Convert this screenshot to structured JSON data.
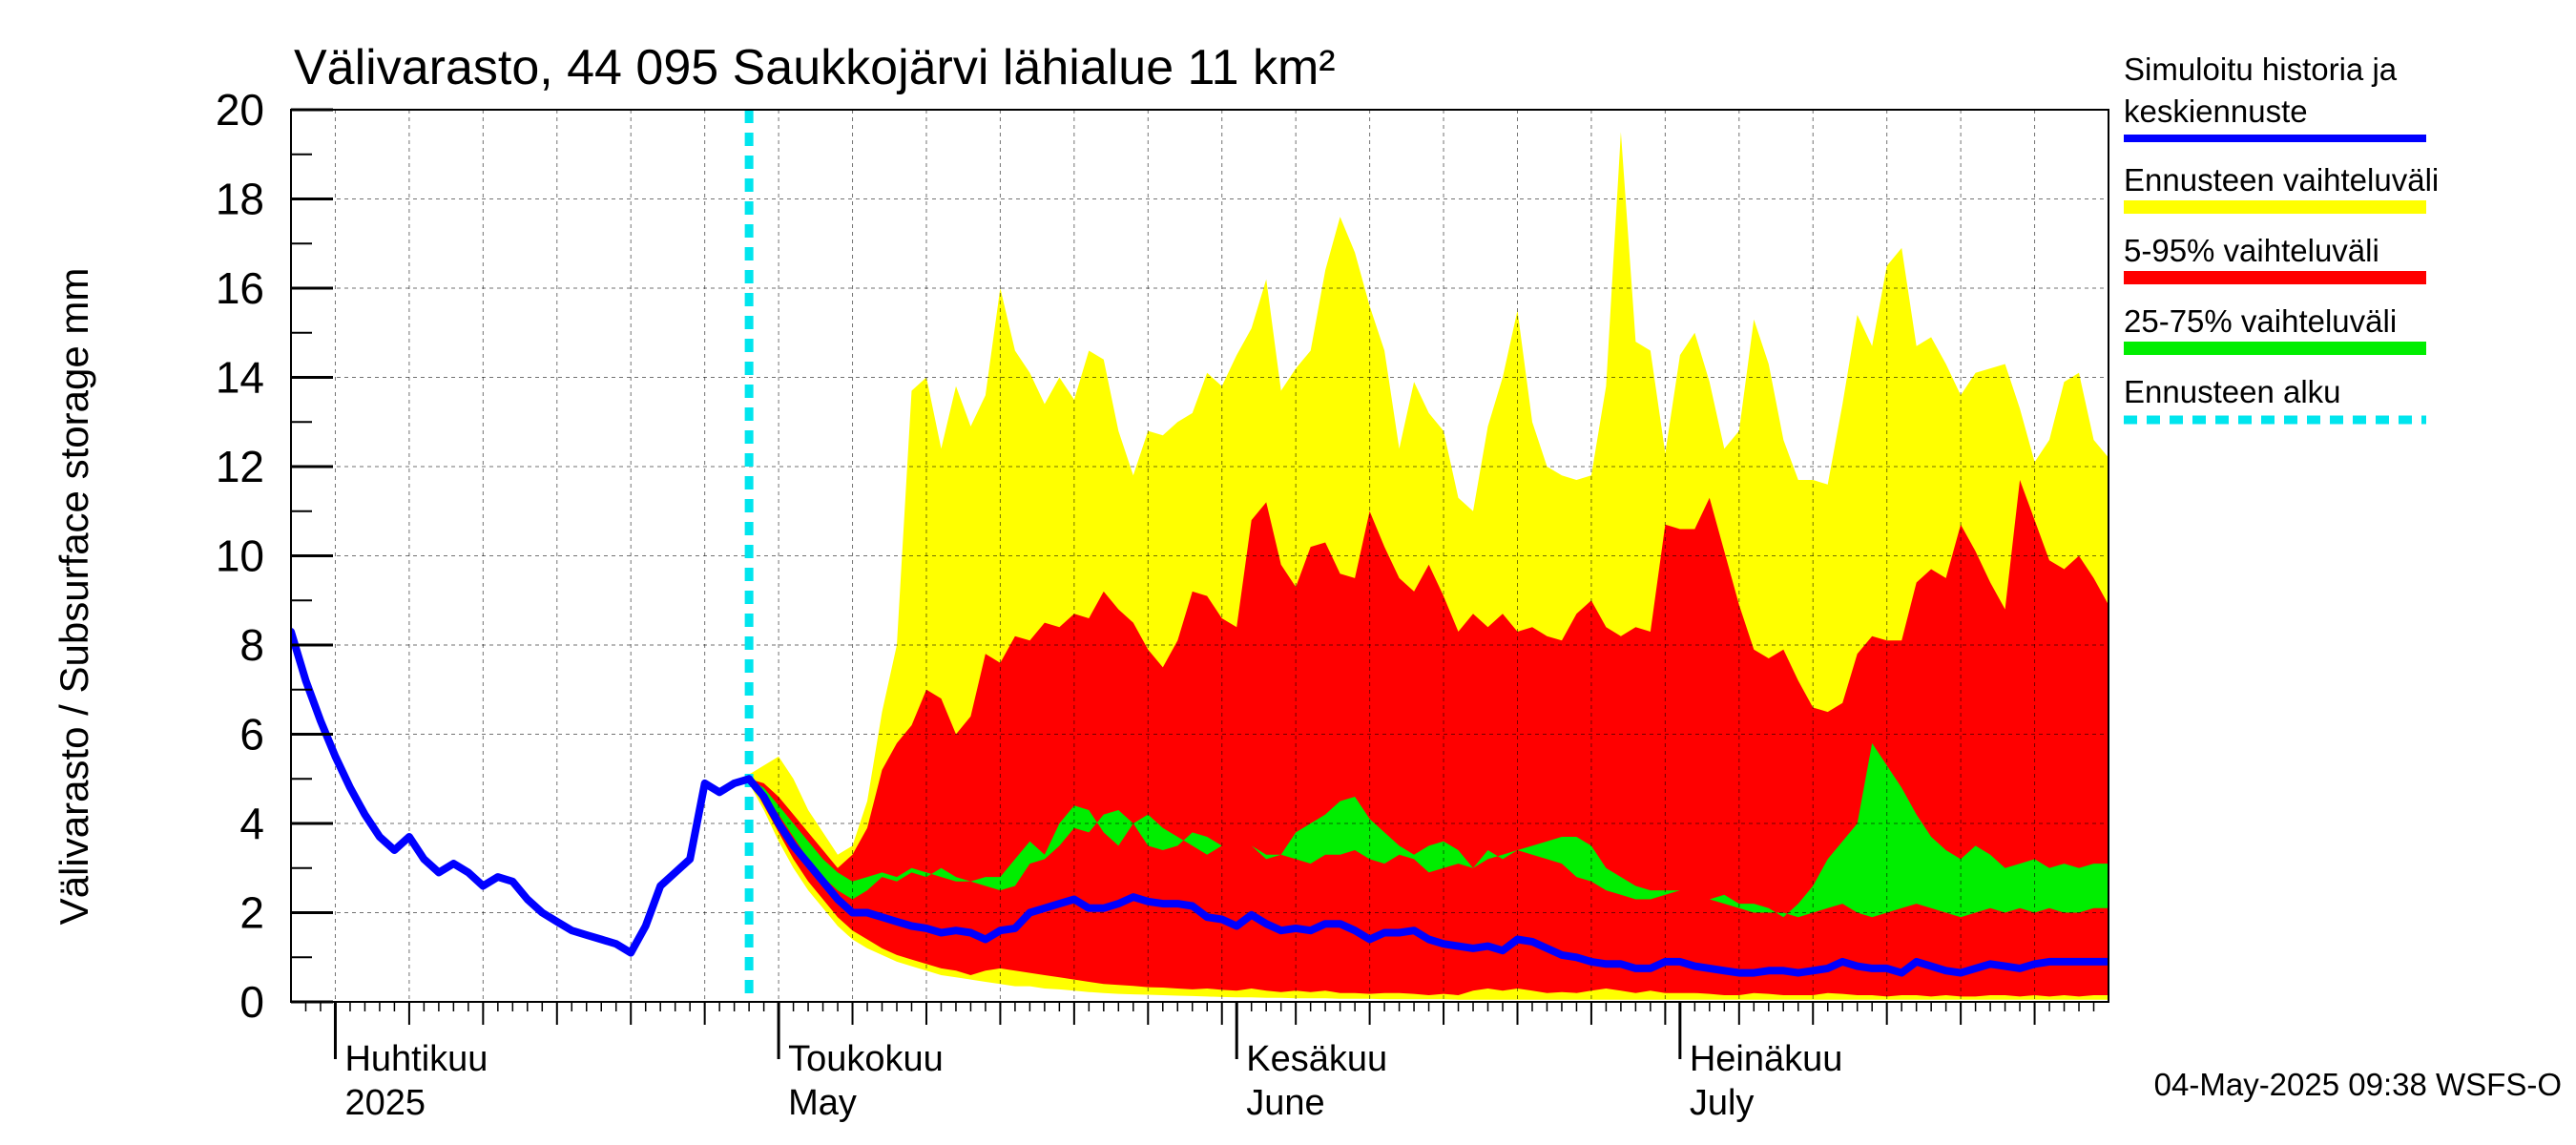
{
  "chart_data": {
    "type": "area",
    "title": "Välivarasto, 44 095 Saukkojärvi lähialue 11 km²",
    "ylabel": "Välivarasto / Subsurface storage  mm",
    "ylim": [
      0,
      20
    ],
    "yticks": [
      0,
      2,
      4,
      6,
      8,
      10,
      12,
      14,
      16,
      18,
      20
    ],
    "x_start_day": 0,
    "x_end_day": 123,
    "x_start_date": "2025-03-29",
    "forecast_start_day": 31,
    "month_labels": [
      {
        "day": 3,
        "fi": "Huhtikuu",
        "en": "2025"
      },
      {
        "day": 33,
        "fi": "Toukokuu",
        "en": "May"
      },
      {
        "day": 64,
        "fi": "Kesäkuu",
        "en": "June"
      },
      {
        "day": 94,
        "fi": "Heinäkuu",
        "en": "July"
      }
    ],
    "month_boundaries": [
      3,
      33,
      64,
      94
    ],
    "legend": [
      {
        "label": "Simuloitu historia ja keskiennuste",
        "color": "#0000ff",
        "style": "line"
      },
      {
        "label": "Ennusteen vaihteluväli",
        "color": "#ffff00",
        "style": "band"
      },
      {
        "label": "5-95% vaihteluväli",
        "color": "#ff0000",
        "style": "band"
      },
      {
        "label": "25-75% vaihteluväli",
        "color": "#00ee00",
        "style": "band"
      },
      {
        "label": "Ennusteen alku",
        "color": "#00e5ee",
        "style": "dashed"
      }
    ],
    "footer": "04-May-2025 09:38 WSFS-O",
    "history": {
      "x": [
        0,
        1,
        2,
        3,
        4,
        5,
        6,
        7,
        8,
        9,
        10,
        11,
        12,
        13,
        14,
        15,
        16,
        17,
        18,
        19,
        20,
        21,
        22,
        23,
        24,
        25,
        26,
        27,
        28,
        29,
        30,
        31
      ],
      "y": [
        8.3,
        7.2,
        6.3,
        5.5,
        4.8,
        4.2,
        3.7,
        3.4,
        3.7,
        3.2,
        2.9,
        3.1,
        2.9,
        2.6,
        2.8,
        2.7,
        2.3,
        2.0,
        1.8,
        1.6,
        1.5,
        1.4,
        1.3,
        1.1,
        1.7,
        2.6,
        2.9,
        3.2,
        4.9,
        4.7,
        4.9,
        5.0
      ]
    },
    "forecast": {
      "x": [
        31,
        32,
        33,
        34,
        35,
        36,
        37,
        38,
        39,
        40,
        41,
        42,
        43,
        44,
        45,
        46,
        47,
        48,
        49,
        50,
        51,
        52,
        53,
        54,
        55,
        56,
        57,
        58,
        59,
        60,
        61,
        62,
        63,
        64,
        65,
        66,
        67,
        68,
        69,
        70,
        71,
        72,
        73,
        74,
        75,
        76,
        77,
        78,
        79,
        80,
        81,
        82,
        83,
        84,
        85,
        86,
        87,
        88,
        89,
        90,
        91,
        92,
        93,
        94,
        95,
        96,
        97,
        98,
        99,
        100,
        101,
        102,
        103,
        104,
        105,
        106,
        107,
        108,
        109,
        110,
        111,
        112,
        113,
        114,
        115,
        116,
        117,
        118,
        119,
        120,
        121,
        122,
        123
      ],
      "median": [
        5.0,
        4.6,
        4.0,
        3.5,
        3.1,
        2.7,
        2.3,
        2.0,
        2.0,
        1.9,
        1.8,
        1.7,
        1.65,
        1.55,
        1.6,
        1.55,
        1.4,
        1.6,
        1.65,
        2.0,
        2.1,
        2.2,
        2.3,
        2.1,
        2.1,
        2.2,
        2.35,
        2.25,
        2.2,
        2.2,
        2.15,
        1.9,
        1.85,
        1.7,
        1.95,
        1.75,
        1.6,
        1.65,
        1.6,
        1.75,
        1.75,
        1.6,
        1.4,
        1.55,
        1.55,
        1.6,
        1.4,
        1.3,
        1.25,
        1.2,
        1.25,
        1.15,
        1.4,
        1.35,
        1.2,
        1.05,
        1.0,
        0.9,
        0.85,
        0.85,
        0.75,
        0.75,
        0.9,
        0.9,
        0.8,
        0.75,
        0.7,
        0.65,
        0.65,
        0.7,
        0.7,
        0.65,
        0.7,
        0.75,
        0.9,
        0.8,
        0.75,
        0.75,
        0.65,
        0.9,
        0.8,
        0.7,
        0.65,
        0.75,
        0.85,
        0.8,
        0.75,
        0.85,
        0.9,
        0.9,
        0.9,
        0.9,
        0.9
      ],
      "min": [
        4.9,
        4.3,
        3.6,
        3.0,
        2.5,
        2.1,
        1.7,
        1.4,
        1.2,
        1.05,
        0.9,
        0.8,
        0.7,
        0.6,
        0.55,
        0.5,
        0.45,
        0.4,
        0.35,
        0.35,
        0.3,
        0.28,
        0.25,
        0.22,
        0.2,
        0.18,
        0.17,
        0.16,
        0.15,
        0.14,
        0.13,
        0.12,
        0.11,
        0.1,
        0.1,
        0.09,
        0.09,
        0.08,
        0.08,
        0.08,
        0.07,
        0.07,
        0.07,
        0.06,
        0.06,
        0.06,
        0.06,
        0.06,
        0.05,
        0.05,
        0.05,
        0.05,
        0.05,
        0.05,
        0.05,
        0.05,
        0.05,
        0.05,
        0.05,
        0.05,
        0.05,
        0.05,
        0.05,
        0.05,
        0.05,
        0.05,
        0.05,
        0.05,
        0.05,
        0.05,
        0.05,
        0.05,
        0.05,
        0.05,
        0.05,
        0.05,
        0.05,
        0.05,
        0.05,
        0.05,
        0.05,
        0.05,
        0.05,
        0.05,
        0.05,
        0.05,
        0.05,
        0.05,
        0.05,
        0.05,
        0.05,
        0.05,
        0.05
      ],
      "p05": [
        5.0,
        4.4,
        3.8,
        3.2,
        2.7,
        2.3,
        1.9,
        1.6,
        1.4,
        1.2,
        1.05,
        0.95,
        0.85,
        0.75,
        0.7,
        0.6,
        0.7,
        0.75,
        0.7,
        0.65,
        0.6,
        0.55,
        0.5,
        0.45,
        0.4,
        0.38,
        0.36,
        0.33,
        0.32,
        0.3,
        0.28,
        0.3,
        0.27,
        0.25,
        0.3,
        0.25,
        0.22,
        0.25,
        0.22,
        0.25,
        0.2,
        0.2,
        0.18,
        0.2,
        0.2,
        0.18,
        0.15,
        0.18,
        0.15,
        0.25,
        0.3,
        0.25,
        0.3,
        0.25,
        0.2,
        0.22,
        0.2,
        0.25,
        0.3,
        0.25,
        0.2,
        0.25,
        0.2,
        0.2,
        0.2,
        0.18,
        0.15,
        0.15,
        0.2,
        0.18,
        0.15,
        0.15,
        0.15,
        0.2,
        0.18,
        0.15,
        0.15,
        0.12,
        0.15,
        0.15,
        0.12,
        0.15,
        0.12,
        0.12,
        0.15,
        0.15,
        0.12,
        0.15,
        0.12,
        0.15,
        0.12,
        0.15,
        0.15
      ],
      "p25": [
        5.0,
        4.7,
        4.2,
        3.7,
        3.2,
        2.8,
        2.5,
        2.3,
        2.5,
        2.8,
        2.7,
        2.9,
        2.8,
        3.0,
        2.8,
        2.7,
        2.6,
        2.5,
        2.6,
        3.1,
        3.2,
        3.5,
        3.9,
        3.8,
        4.2,
        4.3,
        4.0,
        3.5,
        3.4,
        3.5,
        3.8,
        3.7,
        3.5,
        3.4,
        3.5,
        3.2,
        3.3,
        3.2,
        3.1,
        3.3,
        3.3,
        3.4,
        3.2,
        3.1,
        3.3,
        3.2,
        2.9,
        3.0,
        3.1,
        3.0,
        3.2,
        3.3,
        3.4,
        3.3,
        3.2,
        3.1,
        2.8,
        2.7,
        2.5,
        2.4,
        2.3,
        2.3,
        2.4,
        2.5,
        2.4,
        2.3,
        2.2,
        2.1,
        2.0,
        2.0,
        2.0,
        1.9,
        2.0,
        2.1,
        2.2,
        2.0,
        1.9,
        2.0,
        2.1,
        2.2,
        2.1,
        2.0,
        1.9,
        2.0,
        2.1,
        2.0,
        2.1,
        2.0,
        2.1,
        2.0,
        2.0,
        2.1,
        2.1
      ],
      "p75": [
        5.0,
        4.8,
        4.4,
        4.0,
        3.6,
        3.2,
        2.9,
        2.7,
        2.8,
        2.9,
        2.8,
        3.0,
        2.9,
        2.8,
        2.7,
        2.7,
        2.8,
        2.8,
        3.2,
        3.6,
        3.3,
        4.0,
        4.4,
        4.3,
        3.8,
        3.5,
        4.0,
        4.2,
        3.9,
        3.7,
        3.5,
        3.3,
        3.5,
        3.4,
        3.5,
        3.3,
        3.3,
        3.8,
        4.0,
        4.2,
        4.5,
        4.6,
        4.1,
        3.8,
        3.5,
        3.3,
        3.5,
        3.6,
        3.4,
        3.0,
        3.4,
        3.2,
        3.4,
        3.5,
        3.6,
        3.7,
        3.7,
        3.5,
        3.0,
        2.8,
        2.6,
        2.5,
        2.5,
        2.5,
        2.4,
        2.3,
        2.4,
        2.2,
        2.2,
        2.1,
        1.9,
        2.2,
        2.6,
        3.2,
        3.6,
        4.0,
        5.8,
        5.3,
        4.8,
        4.2,
        3.7,
        3.4,
        3.2,
        3.5,
        3.3,
        3.0,
        3.1,
        3.2,
        3.0,
        3.1,
        3.0,
        3.1,
        3.1
      ],
      "p95": [
        5.0,
        4.9,
        4.6,
        4.2,
        3.8,
        3.4,
        3.0,
        3.3,
        3.9,
        5.2,
        5.8,
        6.2,
        7.0,
        6.8,
        6.0,
        6.4,
        7.8,
        7.6,
        8.2,
        8.1,
        8.5,
        8.4,
        8.7,
        8.6,
        9.2,
        8.8,
        8.5,
        7.9,
        7.5,
        8.1,
        9.2,
        9.1,
        8.6,
        8.4,
        10.8,
        11.2,
        9.8,
        9.3,
        10.2,
        10.3,
        9.6,
        9.5,
        11.0,
        10.2,
        9.5,
        9.2,
        9.8,
        9.1,
        8.3,
        8.7,
        8.4,
        8.7,
        8.3,
        8.4,
        8.2,
        8.1,
        8.7,
        9.0,
        8.4,
        8.2,
        8.4,
        8.3,
        10.7,
        10.6,
        10.6,
        11.3,
        10.1,
        8.9,
        7.9,
        7.7,
        7.9,
        7.2,
        6.6,
        6.5,
        6.7,
        7.8,
        8.2,
        8.1,
        8.1,
        9.4,
        9.7,
        9.5,
        10.7,
        10.1,
        9.4,
        8.8,
        11.7,
        10.8,
        9.9,
        9.7,
        10.0,
        9.5,
        8.9
      ],
      "max": [
        5.1,
        5.3,
        5.5,
        5.0,
        4.3,
        3.8,
        3.3,
        3.5,
        4.5,
        6.5,
        8.0,
        13.7,
        14.0,
        12.4,
        13.8,
        12.9,
        13.6,
        16.0,
        14.6,
        14.1,
        13.4,
        14.0,
        13.5,
        14.6,
        14.4,
        12.8,
        11.8,
        12.8,
        12.7,
        13.0,
        13.2,
        14.1,
        13.8,
        14.5,
        15.1,
        16.2,
        13.7,
        14.2,
        14.6,
        16.4,
        17.6,
        16.8,
        15.6,
        14.6,
        12.4,
        13.9,
        13.2,
        12.8,
        11.3,
        11.0,
        12.9,
        14.0,
        15.5,
        13.0,
        12.0,
        11.8,
        11.7,
        11.8,
        13.8,
        19.5,
        14.8,
        14.6,
        12.3,
        14.5,
        15.0,
        13.9,
        12.4,
        12.8,
        15.3,
        14.3,
        12.6,
        11.7,
        11.7,
        11.6,
        13.4,
        15.4,
        14.7,
        16.5,
        16.9,
        14.7,
        14.9,
        14.3,
        13.6,
        14.1,
        14.2,
        14.3,
        13.3,
        12.1,
        12.6,
        13.9,
        14.1,
        12.6,
        12.2
      ]
    }
  }
}
